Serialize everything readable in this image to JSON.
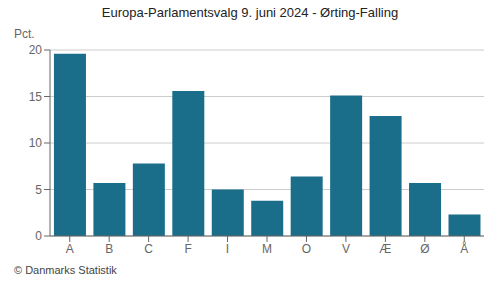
{
  "chart_data": {
    "type": "bar",
    "title": "Europa-Parlamentsvalg 9. juni 2024 - Ørting-Falling",
    "categories": [
      "A",
      "B",
      "C",
      "F",
      "I",
      "M",
      "O",
      "V",
      "Æ",
      "Ø",
      "Å"
    ],
    "values": [
      19.6,
      5.7,
      7.8,
      15.6,
      5.0,
      3.8,
      6.4,
      15.1,
      12.9,
      5.7,
      2.3
    ],
    "color": "#1a6e8a",
    "ylabel": "Pct.",
    "ylim": [
      0,
      20
    ],
    "yticks": [
      0,
      5,
      10,
      15,
      20
    ],
    "grid": true,
    "annotations": [
      "© Danmarks Statistik"
    ]
  }
}
